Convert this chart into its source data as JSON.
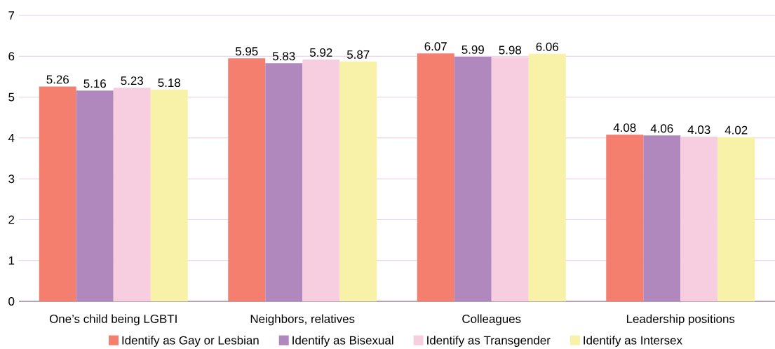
{
  "chart_data": {
    "type": "bar",
    "categories": [
      "One’s child being LGBTI",
      "Neighbors, relatives",
      "Colleagues",
      "Leadership positions"
    ],
    "series": [
      {
        "name": "Identify as Gay or Lesbian",
        "color": "#f47f6f",
        "values": [
          5.26,
          5.95,
          6.07,
          4.08
        ]
      },
      {
        "name": "Identify as Bisexual",
        "color": "#b088be",
        "values": [
          5.16,
          5.83,
          5.99,
          4.06
        ]
      },
      {
        "name": "Identify as Transgender",
        "color": "#f7cde0",
        "values": [
          5.23,
          5.92,
          5.98,
          4.03
        ]
      },
      {
        "name": "Identify as Intersex",
        "color": "#f7f2a8",
        "values": [
          5.18,
          5.87,
          6.06,
          4.02
        ]
      }
    ],
    "ylim": [
      0,
      7
    ],
    "yticks": [
      0,
      1,
      2,
      3,
      4,
      5,
      6,
      7
    ],
    "grid": "y",
    "legend": "bottom",
    "data_labels": true
  }
}
